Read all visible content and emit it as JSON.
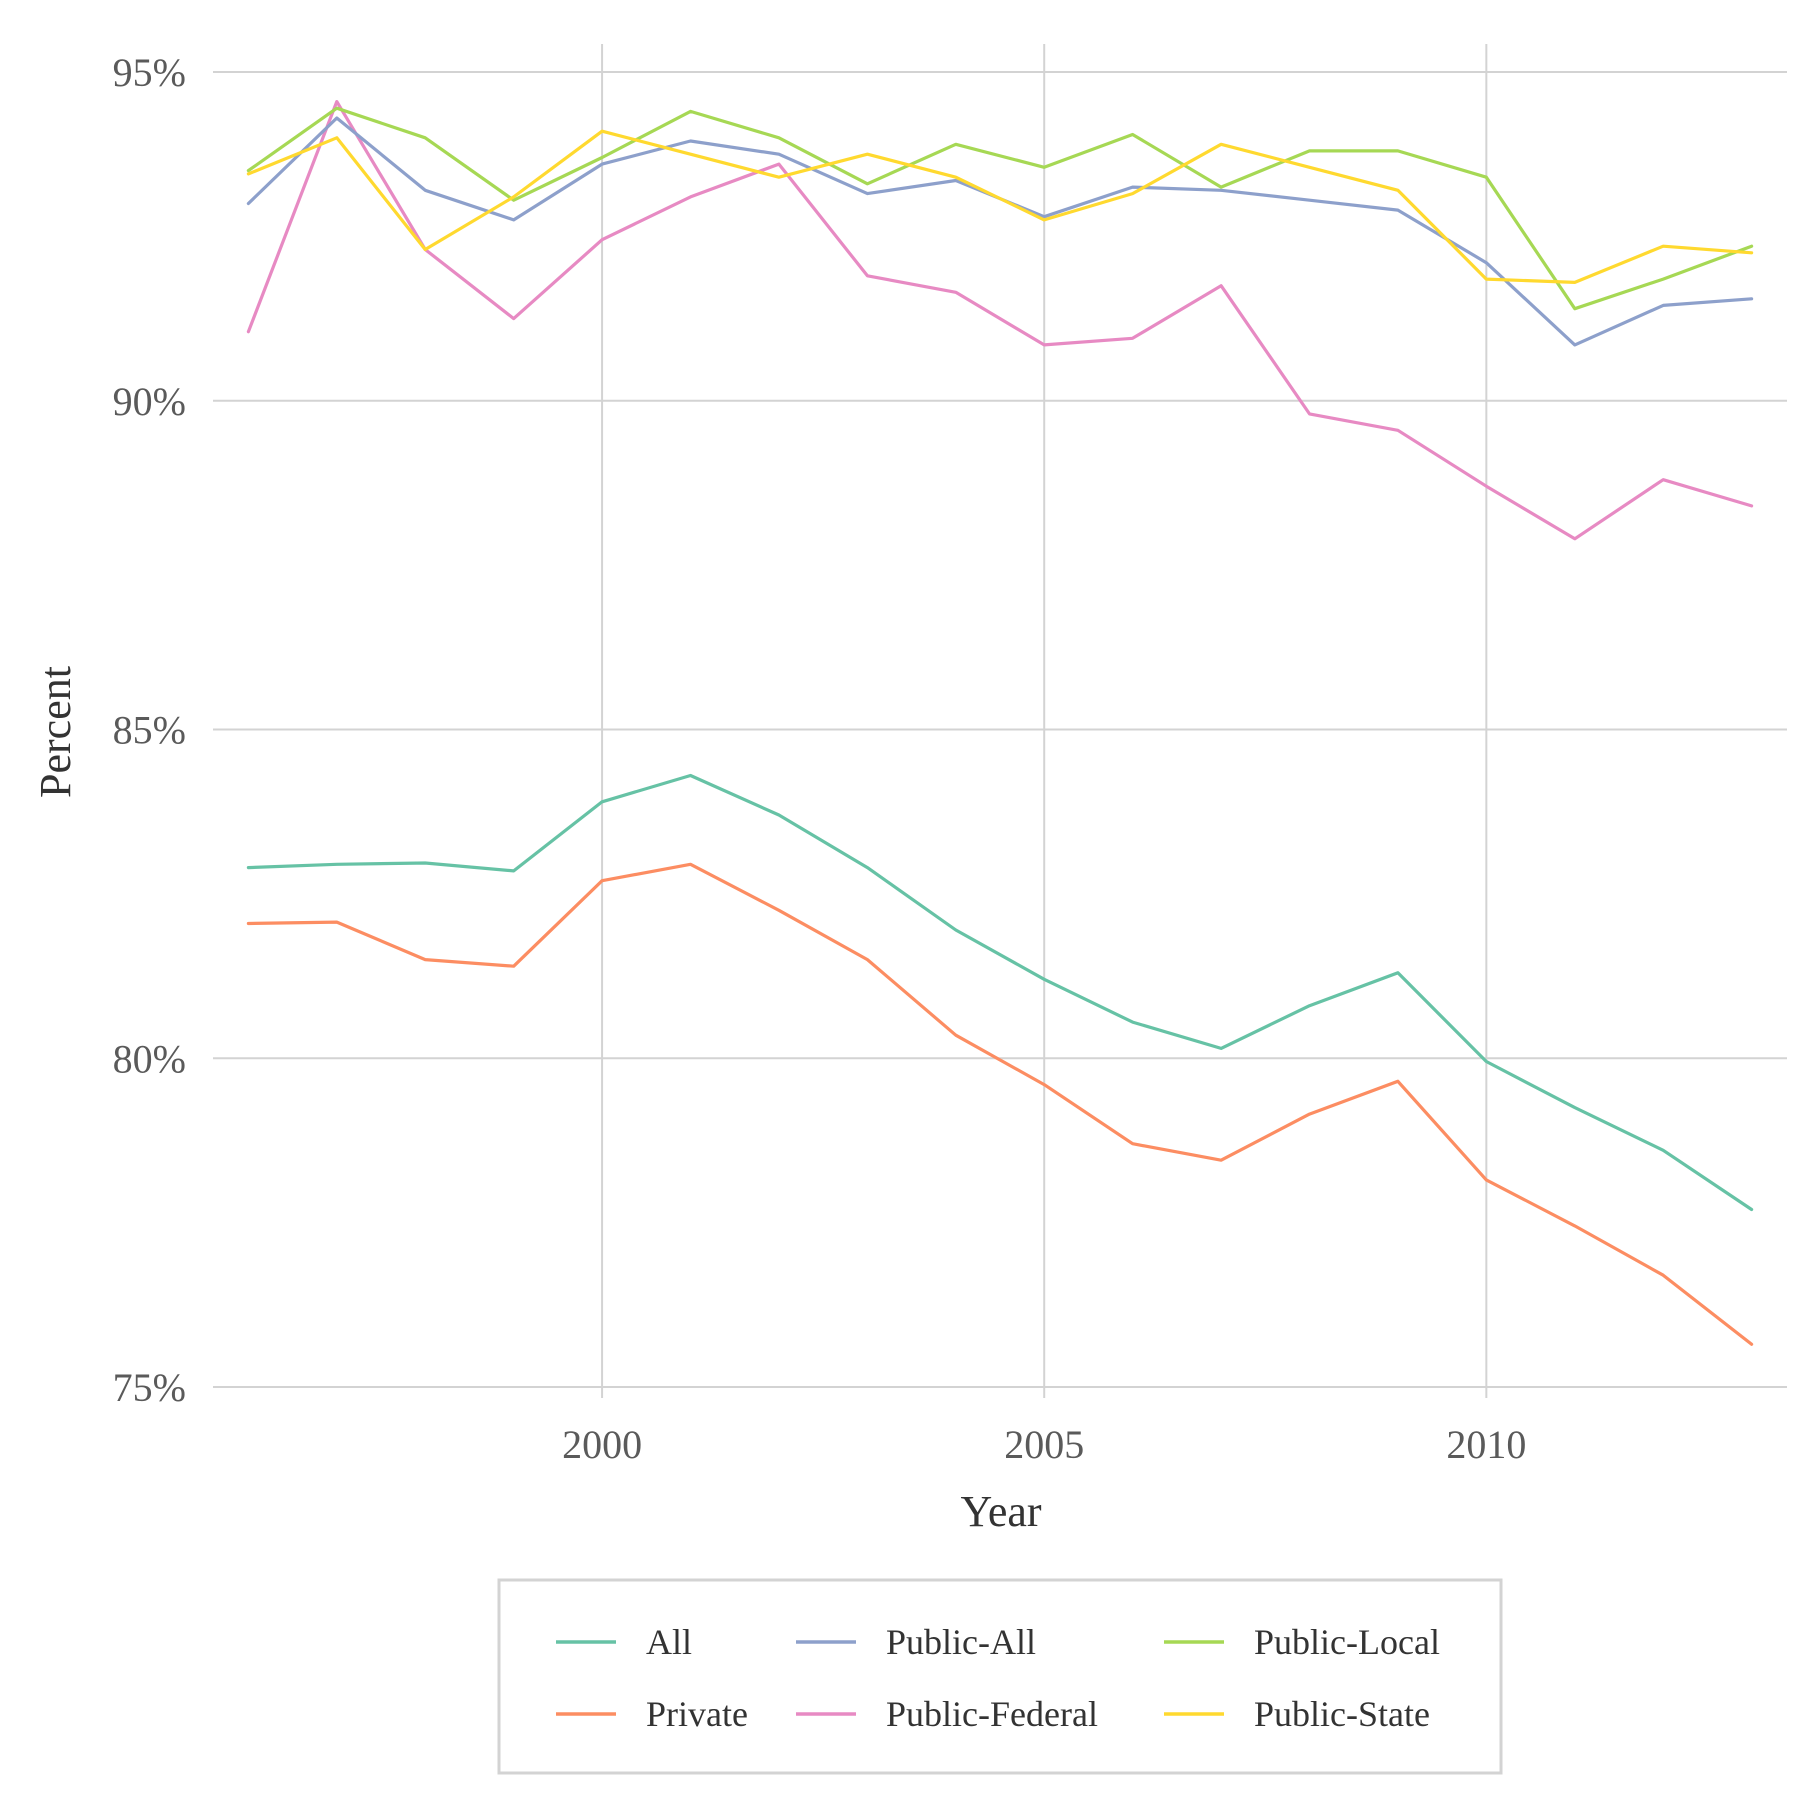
{
  "chart_data": {
    "type": "line",
    "title": "",
    "xlabel": "Year",
    "ylabel": "Percent",
    "xlim": [
      1995.6,
      2013.4
    ],
    "ylim": [
      75,
      95
    ],
    "x_ticks": [
      2000,
      2005,
      2010
    ],
    "x_tick_labels": [
      "2000",
      "2005",
      "2010"
    ],
    "y_ticks": [
      75,
      80,
      85,
      90,
      95
    ],
    "y_tick_labels": [
      "75%",
      "80%",
      "85%",
      "90%",
      "95%"
    ],
    "grid": true,
    "legend_position": "bottom",
    "x": [
      1996,
      1997,
      1998,
      1999,
      2000,
      2001,
      2002,
      2003,
      2004,
      2005,
      2006,
      2007,
      2008,
      2009,
      2010,
      2011,
      2012,
      2013
    ],
    "series": [
      {
        "name": "All",
        "color": "#66c2a5",
        "values": [
          82.9,
          82.95,
          82.97,
          82.85,
          83.9,
          84.3,
          83.7,
          82.9,
          81.95,
          81.2,
          80.55,
          80.15,
          80.8,
          81.3,
          79.95,
          79.25,
          78.6,
          77.7
        ]
      },
      {
        "name": "Private",
        "color": "#fc8d62",
        "values": [
          82.05,
          82.07,
          81.5,
          81.4,
          82.7,
          82.95,
          82.25,
          81.5,
          80.35,
          79.6,
          78.7,
          78.45,
          79.15,
          79.65,
          78.15,
          77.45,
          76.7,
          75.65
        ]
      },
      {
        "name": "Public-All",
        "color": "#8da0cb",
        "values": [
          93.0,
          94.3,
          93.2,
          92.75,
          93.6,
          93.95,
          93.75,
          93.15,
          93.35,
          92.8,
          93.25,
          93.2,
          93.05,
          92.9,
          92.1,
          90.85,
          91.45,
          91.55
        ]
      },
      {
        "name": "Public-Federal",
        "color": "#e78ac3",
        "values": [
          91.05,
          94.55,
          92.3,
          91.25,
          92.45,
          93.1,
          93.6,
          91.9,
          91.65,
          90.85,
          90.95,
          91.75,
          89.8,
          89.55,
          88.7,
          87.9,
          88.8,
          88.4
        ]
      },
      {
        "name": "Public-Local",
        "color": "#a6d854",
        "values": [
          93.5,
          94.45,
          94.0,
          93.05,
          93.7,
          94.4,
          94.0,
          93.3,
          93.9,
          93.55,
          94.05,
          93.25,
          93.8,
          93.8,
          93.4,
          91.4,
          91.85,
          92.35
        ]
      },
      {
        "name": "Public-State",
        "color": "#ffd92f",
        "values": [
          93.45,
          94.0,
          92.3,
          93.1,
          94.1,
          93.75,
          93.4,
          93.75,
          93.4,
          92.75,
          93.15,
          93.9,
          93.55,
          93.2,
          91.85,
          91.8,
          92.35,
          92.25
        ]
      }
    ],
    "legend_order": [
      "All",
      "Public-All",
      "Public-Local",
      "Private",
      "Public-Federal",
      "Public-State"
    ]
  }
}
